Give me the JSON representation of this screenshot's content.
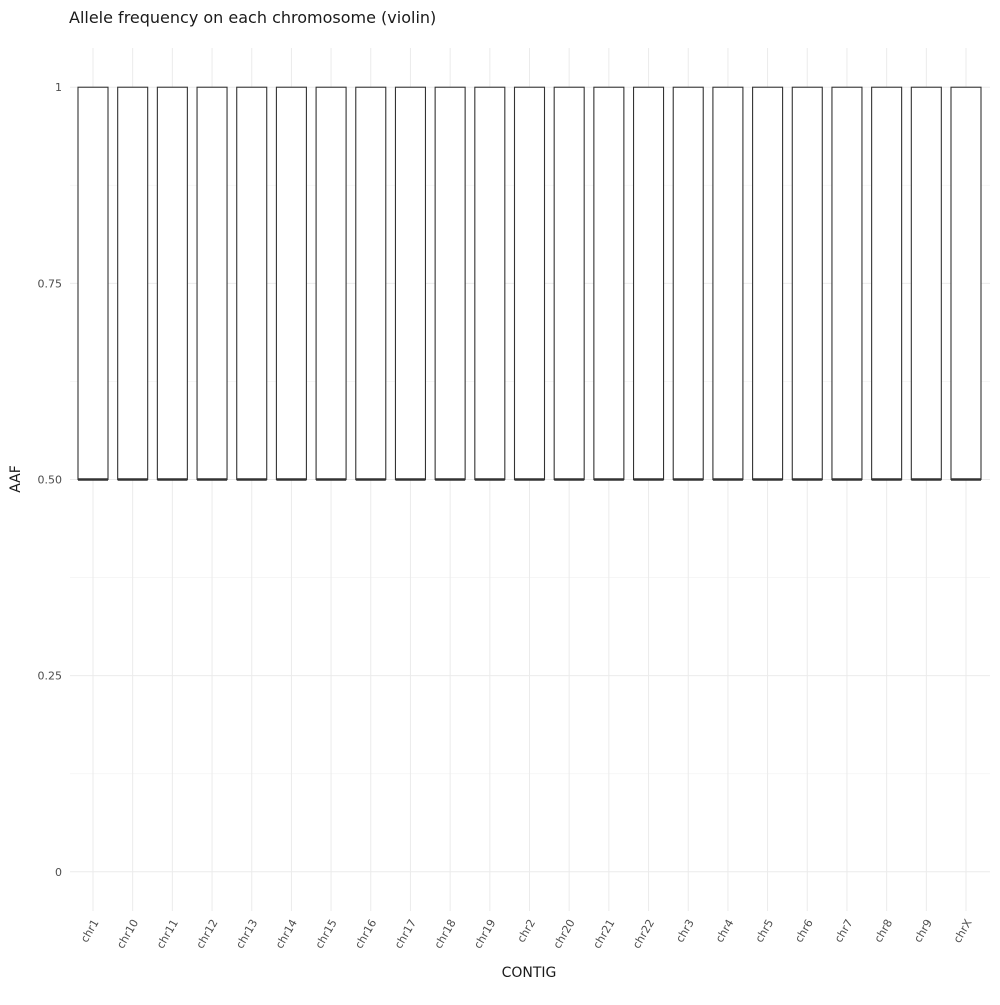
{
  "chart_data": {
    "type": "violin",
    "title": "Allele frequency on each chromosome (violin)",
    "xlabel": "CONTIG",
    "ylabel": "AAF",
    "categories": [
      "chr1",
      "chr10",
      "chr11",
      "chr12",
      "chr13",
      "chr14",
      "chr15",
      "chr16",
      "chr17",
      "chr18",
      "chr19",
      "chr2",
      "chr20",
      "chr21",
      "chr22",
      "chr3",
      "chr4",
      "chr5",
      "chr6",
      "chr7",
      "chr8",
      "chr9",
      "chrX"
    ],
    "series": [
      {
        "min": [
          0.5,
          0.5,
          0.5,
          0.5,
          0.5,
          0.5,
          0.5,
          0.5,
          0.5,
          0.5,
          0.5,
          0.5,
          0.5,
          0.5,
          0.5,
          0.5,
          0.5,
          0.5,
          0.5,
          0.5,
          0.5,
          0.5,
          0.5
        ],
        "max": [
          1,
          1,
          1,
          1,
          1,
          1,
          1,
          1,
          1,
          1,
          1,
          1,
          1,
          1,
          1,
          1,
          1,
          1,
          1,
          1,
          1,
          1,
          1
        ]
      }
    ],
    "yticks": [
      0,
      0.25,
      0.5,
      0.75,
      1
    ],
    "ytick_labels": [
      "0",
      "0.25",
      "0.50",
      "0.75",
      "1"
    ],
    "ylim": [
      -0.05,
      1.05
    ],
    "grid": true,
    "legend": "none",
    "colors": {
      "fill": "#ffffff",
      "outline": "#333333",
      "grid": "#ebebeb",
      "text": "#4d4d4d"
    }
  }
}
